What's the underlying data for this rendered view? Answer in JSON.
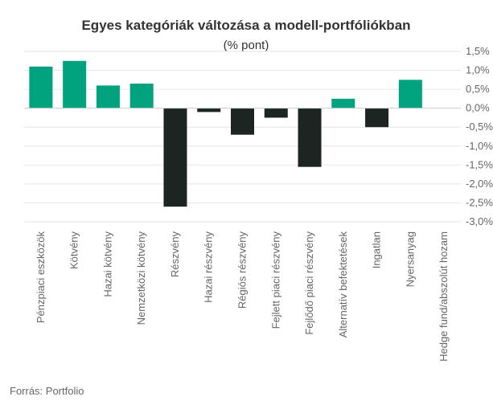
{
  "chart_data": {
    "type": "bar",
    "title": "Egyes kategóriák változása a modell-portfóliókban",
    "subtitle": "(% pont)",
    "source": "Forrás: Portfolio",
    "categories": [
      "Pénzpiaci eszközök",
      "Kötvény",
      "Hazai kötvény",
      "Nemzetközi kötvény",
      "Részvény",
      "Hazai részvény",
      "Régiós részvény",
      "Fejlett piaci részvény",
      "Fejlődő piaci részvény",
      "Alternatív befektetések",
      "Ingatlan",
      "Nyersanyag",
      "Hedge fund/abszolút hozam"
    ],
    "values": [
      1.1,
      1.25,
      0.6,
      0.65,
      -2.6,
      -0.1,
      -0.7,
      -0.25,
      -1.55,
      0.25,
      -0.5,
      0.75,
      0
    ],
    "ylim": [
      -3.0,
      1.5
    ],
    "yticks": [
      "1,5%",
      "1,0%",
      "0,5%",
      "0,0%",
      "-0,5%",
      "-1,0%",
      "-1,5%",
      "-2,0%",
      "-2,5%",
      "-3,0%"
    ],
    "ytick_values": [
      1.5,
      1.0,
      0.5,
      0.0,
      -0.5,
      -1.0,
      -1.5,
      -2.0,
      -2.5,
      -3.0
    ],
    "y_axis_position": "right",
    "grid": true,
    "colors": {
      "positive": "#00a37e",
      "negative": "#1c2522",
      "grid": "#e6e6e6",
      "axis": "#cccccc"
    }
  }
}
